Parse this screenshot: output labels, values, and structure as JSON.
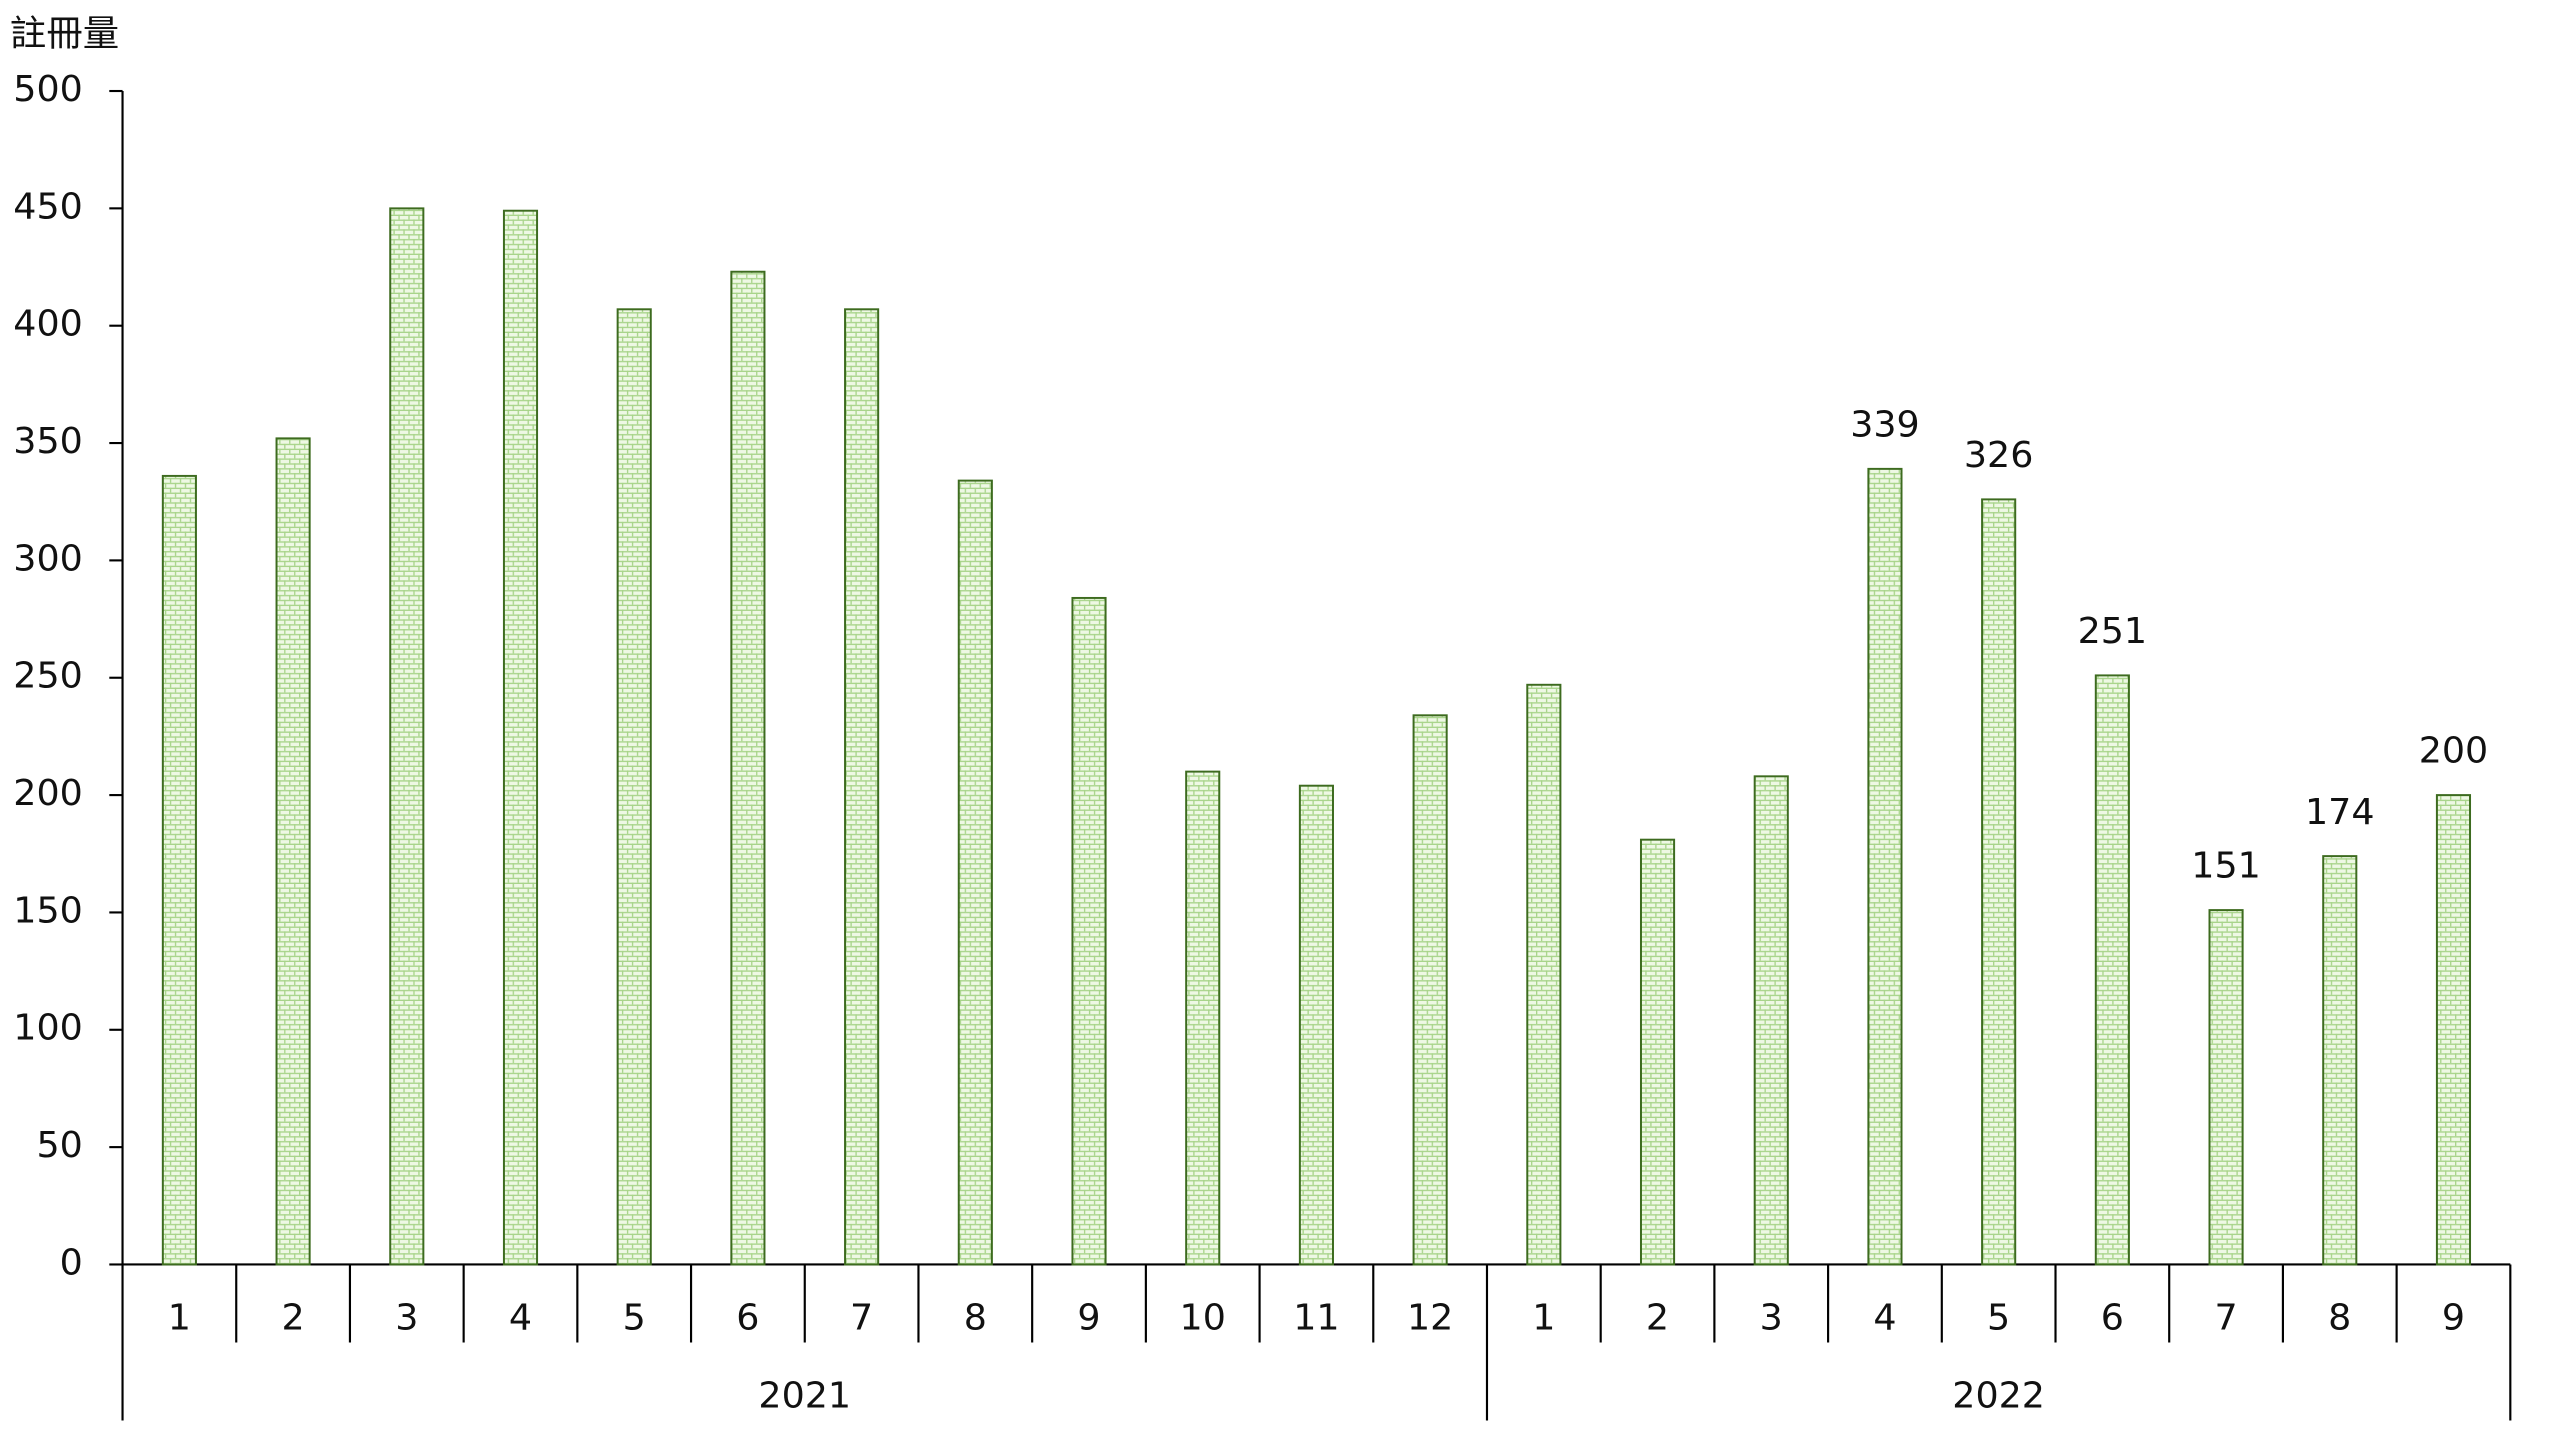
{
  "chart_data": {
    "type": "bar",
    "y_axis_title": "註冊量",
    "groups": [
      {
        "label": "2021",
        "categories": [
          "1",
          "2",
          "3",
          "4",
          "5",
          "6",
          "7",
          "8",
          "9",
          "10",
          "11",
          "12"
        ]
      },
      {
        "label": "2022",
        "categories": [
          "1",
          "2",
          "3",
          "4",
          "5",
          "6",
          "7",
          "8",
          "9"
        ]
      }
    ],
    "values": [
      336,
      352,
      450,
      449,
      407,
      423,
      407,
      334,
      284,
      210,
      204,
      234,
      247,
      181,
      208,
      339,
      326,
      251,
      151,
      174,
      200
    ],
    "value_labels": [
      null,
      null,
      null,
      null,
      null,
      null,
      null,
      null,
      null,
      null,
      null,
      null,
      null,
      null,
      null,
      "339",
      "326",
      "251",
      "151",
      "174",
      "200"
    ],
    "color": "#e6f4d7",
    "stroke": "#3d6b1f",
    "ylim": [
      0,
      500
    ],
    "yticks": [
      0,
      50,
      100,
      150,
      200,
      250,
      300,
      350,
      400,
      450,
      500
    ],
    "grid": false
  }
}
